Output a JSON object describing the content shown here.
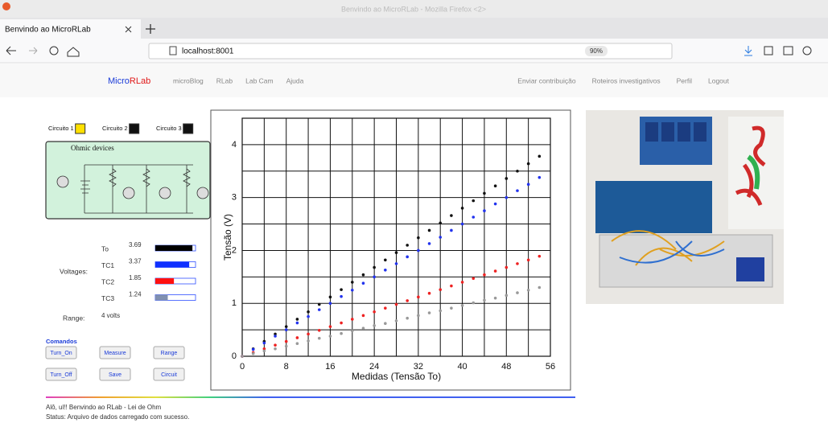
{
  "window_title": "Benvindo ao MicroRLab - Mozilla Firefox <2>",
  "tab_title": "Benvindo ao MicroRLab",
  "url": "localhost:8001",
  "zoom": "90%",
  "nav": {
    "brand": [
      "Micro",
      "RLab"
    ],
    "left": [
      "microBlog",
      "RLab",
      "Lab Cam",
      "Ajuda"
    ],
    "right": [
      "Enviar contribuição",
      "Roteiros investigativos",
      "Perfil",
      "Logout"
    ]
  },
  "circuits": [
    {
      "label": "Circuito 1",
      "color": "#ffe000"
    },
    {
      "label": "Circuito 2",
      "color": "#111111"
    },
    {
      "label": "Circuito 3",
      "color": "#111111"
    }
  ],
  "diagram_title": "Ohmic devices",
  "voltages": {
    "label": "Voltages:",
    "rows": [
      {
        "name": "To",
        "value": 3.69,
        "color": "#000000"
      },
      {
        "name": "TC1",
        "value": 3.37,
        "color": "#1030ff"
      },
      {
        "name": "TC2",
        "value": 1.85,
        "color": "#ff1010"
      },
      {
        "name": "TC3",
        "value": 1.24,
        "color": "#8090b0"
      }
    ]
  },
  "range": {
    "label": "Range:",
    "value": {
      "value": 4,
      "label": "4 volts"
    }
  },
  "commands": {
    "title": "Comandos",
    "buttons": [
      "Turn_On",
      "Measure",
      "Range",
      "Turn_Off",
      "Save",
      "Circuit"
    ]
  },
  "chart_data": {
    "type": "scatter",
    "xlabel": "Medidas (Tensão To)",
    "ylabel": "Tensão (V)",
    "xlim": [
      0,
      56
    ],
    "ylim": [
      0,
      4.5
    ],
    "xticks": [
      0,
      8,
      16,
      24,
      32,
      40,
      48,
      56
    ],
    "yticks": [
      0,
      1,
      2,
      3,
      4
    ],
    "x_minor_ticks": [
      4,
      12,
      20,
      28,
      36,
      44,
      52
    ],
    "y_minor_ticks": [
      0.5,
      1.5,
      2.5,
      3.5
    ],
    "grid": true,
    "x": [
      0,
      2,
      4,
      6,
      8,
      10,
      12,
      14,
      16,
      18,
      20,
      22,
      24,
      26,
      28,
      30,
      32,
      34,
      36,
      38,
      40,
      42,
      44,
      46,
      48,
      50,
      52,
      54
    ],
    "series": [
      {
        "color": "#111111",
        "values": [
          0,
          0.14,
          0.28,
          0.42,
          0.56,
          0.7,
          0.84,
          0.98,
          1.12,
          1.26,
          1.4,
          1.54,
          1.68,
          1.82,
          1.96,
          2.1,
          2.24,
          2.38,
          2.52,
          2.66,
          2.8,
          2.94,
          3.08,
          3.22,
          3.36,
          3.5,
          3.64,
          3.78
        ]
      },
      {
        "color": "#2233ee",
        "values": [
          0,
          0.13,
          0.25,
          0.38,
          0.5,
          0.63,
          0.75,
          0.88,
          1.0,
          1.13,
          1.25,
          1.38,
          1.5,
          1.63,
          1.75,
          1.88,
          2.0,
          2.13,
          2.25,
          2.38,
          2.5,
          2.63,
          2.75,
          2.88,
          3.0,
          3.13,
          3.25,
          3.38
        ]
      },
      {
        "color": "#ee2222",
        "values": [
          0,
          0.07,
          0.14,
          0.21,
          0.28,
          0.35,
          0.42,
          0.49,
          0.56,
          0.63,
          0.7,
          0.77,
          0.84,
          0.91,
          0.98,
          1.05,
          1.12,
          1.19,
          1.26,
          1.33,
          1.4,
          1.47,
          1.54,
          1.61,
          1.68,
          1.75,
          1.82,
          1.89
        ]
      },
      {
        "color": "#999999",
        "values": [
          0,
          0.05,
          0.1,
          0.14,
          0.19,
          0.24,
          0.29,
          0.34,
          0.38,
          0.43,
          0.48,
          0.53,
          0.58,
          0.62,
          0.67,
          0.72,
          0.77,
          0.82,
          0.86,
          0.91,
          0.96,
          1.01,
          1.06,
          1.1,
          1.15,
          1.2,
          1.25,
          1.3
        ]
      }
    ]
  },
  "footer": {
    "greeting": "Alô, ul!! Benvindo ao RLab - Lei de Ohm",
    "status": "Status: Arquivo de dados carregado com sucesso."
  }
}
